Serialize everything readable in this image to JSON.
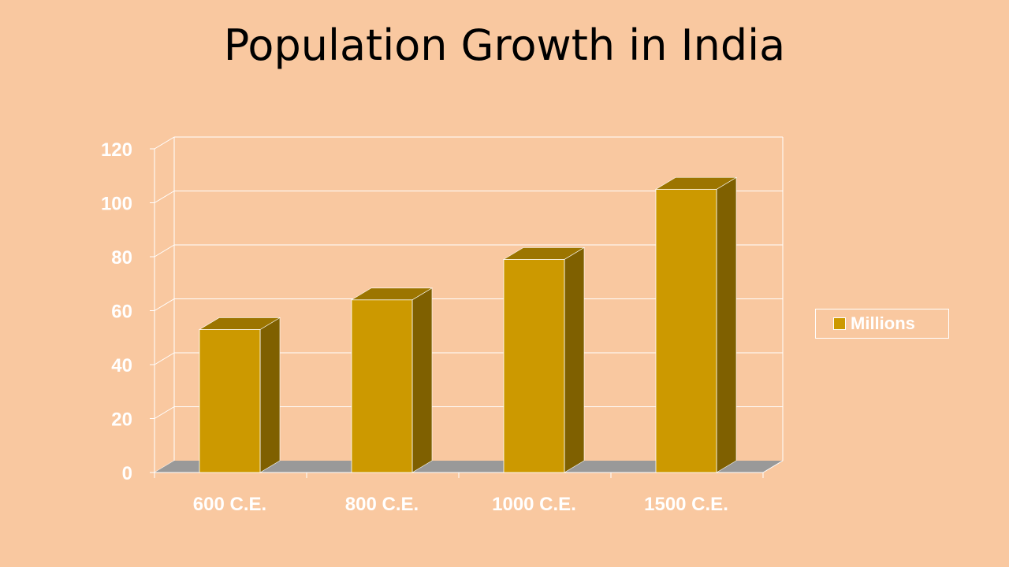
{
  "slide": {
    "title": "Population Growth in India"
  },
  "colors": {
    "background": "#F9C8A0",
    "bar_front": "#CC9900",
    "bar_top": "#9C7500",
    "bar_side": "#7F6000",
    "floor": "#999999",
    "grid": "#FFFFFF",
    "text": "#FFFFFF"
  },
  "chart_data": {
    "type": "bar",
    "title": "Population Growth in India",
    "categories": [
      "600 C.E.",
      "800 C.E.",
      "1000 C.E.",
      "1500 C.E."
    ],
    "series": [
      {
        "name": "Millions",
        "values": [
          53,
          64,
          79,
          105
        ]
      }
    ],
    "ylim": [
      0,
      120
    ],
    "yticks": [
      0,
      20,
      40,
      60,
      80,
      100,
      120
    ],
    "xlabel": "",
    "ylabel": "",
    "grid": true,
    "legend": "right",
    "style": "3d-column"
  }
}
